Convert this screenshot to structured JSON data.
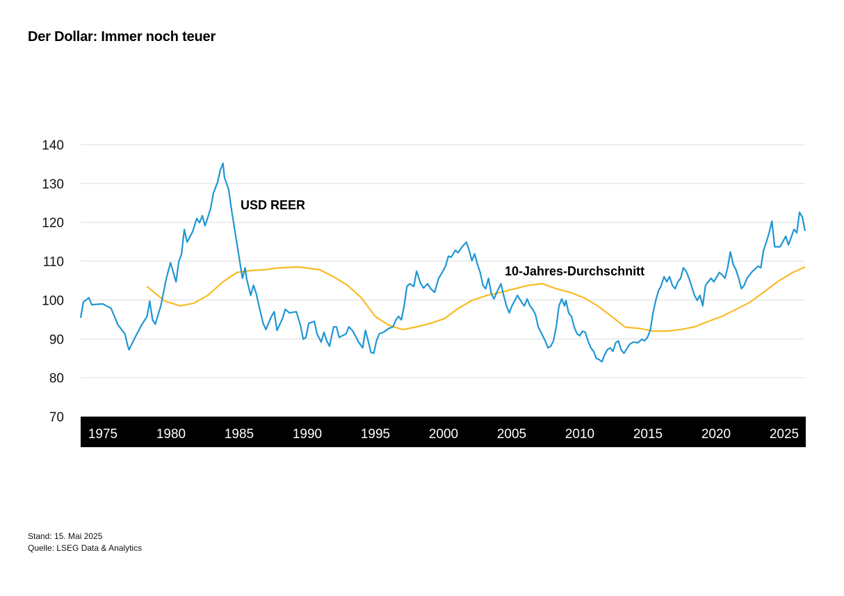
{
  "title": "Der Dollar: Immer noch teuer",
  "footer": {
    "date": "Stand: 15. Mai 2025",
    "source": "Quelle: LSEG Data & Analytics"
  },
  "chart_data": {
    "type": "line",
    "title": "Der Dollar: Immer noch teuer",
    "xlabel": "",
    "ylabel": "",
    "xlim": [
      1973,
      2025.4
    ],
    "ylim": [
      70,
      140
    ],
    "yticks": [
      70,
      80,
      90,
      100,
      110,
      120,
      130,
      140
    ],
    "xticks": [
      1975,
      1980,
      1985,
      1990,
      1995,
      2000,
      2005,
      2010,
      2015,
      2020,
      2025
    ],
    "grid": "horizontal",
    "legend": "none (inline labels)",
    "colors": {
      "reer": "#1e96d3",
      "avg": "#f8bb22",
      "axis_band": "#000000"
    },
    "series": [
      {
        "name": "USD REER",
        "x": [
          1973.0,
          1973.2,
          1973.6,
          1973.8,
          1974.6,
          1975.2,
          1975.7,
          1976.2,
          1976.4,
          1976.5,
          1977.0,
          1977.4,
          1977.8,
          1978.0,
          1978.2,
          1978.4,
          1978.8,
          1979.2,
          1979.5,
          1979.9,
          1980.1,
          1980.3,
          1980.5,
          1980.7,
          1981.1,
          1981.4,
          1981.6,
          1981.8,
          1982.0,
          1982.4,
          1982.6,
          1982.9,
          1983.1,
          1983.3,
          1983.4,
          1983.7,
          1983.9,
          1984.0,
          1984.3,
          1984.5,
          1984.7,
          1984.9,
          1985.0,
          1985.3,
          1985.5,
          1985.7,
          1985.9,
          1986.2,
          1986.4,
          1986.8,
          1987.0,
          1987.2,
          1987.6,
          1987.8,
          1988.1,
          1988.6,
          1988.9,
          1989.1,
          1989.3,
          1989.5,
          1989.9,
          1990.1,
          1990.4,
          1990.6,
          1990.8,
          1991.0,
          1991.3,
          1991.5,
          1991.7,
          1992.2,
          1992.4,
          1992.7,
          1993.1,
          1993.4,
          1993.6,
          1993.8,
          1994.0,
          1994.2,
          1994.4,
          1994.6,
          1994.9,
          1995.3,
          1995.6,
          1995.8,
          1996.0,
          1996.2,
          1996.4,
          1996.6,
          1996.8,
          1997.1,
          1997.3,
          1997.6,
          1997.8,
          1998.1,
          1998.3,
          1998.6,
          1998.9,
          1999.2,
          1999.4,
          1999.6,
          1999.8,
          2000.1,
          2000.3,
          2000.6,
          2000.9,
          2001.1,
          2001.3,
          2001.5,
          2001.7,
          2001.9,
          2002.1,
          2002.3,
          2002.5,
          2002.7,
          2002.9,
          2003.1,
          2003.4,
          2003.6,
          2003.8,
          2004.0,
          2004.2,
          2004.6,
          2004.9,
          2005.1,
          2005.3,
          2005.5,
          2005.7,
          2005.9,
          2006.1,
          2006.3,
          2006.6,
          2006.8,
          2007.0,
          2007.2,
          2007.4,
          2007.6,
          2007.8,
          2008.0,
          2008.1,
          2008.3,
          2008.5,
          2008.7,
          2008.9,
          2009.1,
          2009.3,
          2009.5,
          2009.7,
          2009.9,
          2010.1,
          2010.3,
          2010.5,
          2010.7,
          2010.9,
          2011.1,
          2011.3,
          2011.5,
          2011.7,
          2011.9,
          2012.1,
          2012.3,
          2012.5,
          2012.7,
          2013.0,
          2013.3,
          2013.6,
          2013.8,
          2014.0,
          2014.2,
          2014.4,
          2014.6,
          2014.8,
          2015.0,
          2015.2,
          2015.4,
          2015.6,
          2015.8,
          2016.0,
          2016.2,
          2016.4,
          2016.6,
          2016.8,
          2017.0,
          2017.2,
          2017.4,
          2017.6,
          2017.8,
          2018.0,
          2018.2,
          2018.4,
          2018.6,
          2018.8,
          2019.2,
          2019.4,
          2019.6,
          2019.8,
          2020.0,
          2020.2,
          2020.4,
          2020.6,
          2020.8,
          2021.0,
          2021.2,
          2021.6,
          2022.0,
          2022.2,
          2022.4,
          2022.6,
          2022.8,
          2023.0,
          2023.2,
          2023.6,
          2024.0,
          2024.2,
          2024.6,
          2024.8,
          2025.0,
          2025.2,
          2025.4
        ],
        "values": [
          95.4,
          99.5,
          100.6,
          98.8,
          99.0,
          97.9,
          93.6,
          91.3,
          88.3,
          87.2,
          90.8,
          93.5,
          95.8,
          99.7,
          94.9,
          93.8,
          98.5,
          105.6,
          109.6,
          104.7,
          109.9,
          111.9,
          118.2,
          114.9,
          117.6,
          121.0,
          119.9,
          121.7,
          119.1,
          123.5,
          127.5,
          130.3,
          133.4,
          135.2,
          131.6,
          128.5,
          123.5,
          121.4,
          114.6,
          110.1,
          105.6,
          108.3,
          105.6,
          101.2,
          103.8,
          101.7,
          98.5,
          94.0,
          92.4,
          95.8,
          97.0,
          92.2,
          95.2,
          97.6,
          96.7,
          97.0,
          93.5,
          89.9,
          90.4,
          94.0,
          94.5,
          91.3,
          89.2,
          91.7,
          89.5,
          88.1,
          93.1,
          93.1,
          90.4,
          91.3,
          93.1,
          92.0,
          89.2,
          87.7,
          92.2,
          89.5,
          86.5,
          86.3,
          89.5,
          91.3,
          91.7,
          92.7,
          93.1,
          94.9,
          95.8,
          94.9,
          98.5,
          103.5,
          104.2,
          103.5,
          107.4,
          104.2,
          103.1,
          104.2,
          103.0,
          102.0,
          105.6,
          107.4,
          108.8,
          111.3,
          111.0,
          112.8,
          112.2,
          113.7,
          114.9,
          112.8,
          110.1,
          111.9,
          109.2,
          107.1,
          103.8,
          102.9,
          105.6,
          101.7,
          100.3,
          102.0,
          104.2,
          101.2,
          98.5,
          96.7,
          98.5,
          101.2,
          99.4,
          98.5,
          100.3,
          98.5,
          97.6,
          96.3,
          93.1,
          91.7,
          89.5,
          87.7,
          88.1,
          89.5,
          93.1,
          98.5,
          100.3,
          98.5,
          99.9,
          96.7,
          95.8,
          93.1,
          91.3,
          90.8,
          92.0,
          91.7,
          89.5,
          87.7,
          86.8,
          85.0,
          84.7,
          84.1,
          85.9,
          87.2,
          87.7,
          86.8,
          89.0,
          89.5,
          87.2,
          86.3,
          87.4,
          88.6,
          89.2,
          89.0,
          89.9,
          89.5,
          90.4,
          92.2,
          96.7,
          99.9,
          102.4,
          103.8,
          106.0,
          104.7,
          106.0,
          103.8,
          102.9,
          104.7,
          105.6,
          108.3,
          107.4,
          105.6,
          103.5,
          101.2,
          99.9,
          101.2,
          98.5,
          103.8,
          104.7,
          105.6,
          104.7,
          107.1,
          106.5,
          105.6,
          108.3,
          112.4,
          109.2,
          107.8,
          105.6,
          102.9,
          103.8,
          105.6,
          107.4,
          108.7,
          108.3,
          112.8,
          114.9,
          117.3,
          120.3,
          113.7,
          113.7,
          116.4,
          114.2,
          118.2,
          117.3,
          122.6,
          121.4,
          117.8
        ]
      },
      {
        "name": "10-Jahres-Durchschnitt",
        "x": [
          1977.8,
          1979.1,
          1980.2,
          1981.2,
          1982.2,
          1983.3,
          1984.3,
          1985.3,
          1986.3,
          1987.3,
          1988.8,
          1990.3,
          1991.3,
          1992.3,
          1993.3,
          1994.3,
          1995.3,
          1996.3,
          1997.3,
          1998.3,
          1999.3,
          2000.3,
          2001.3,
          2002.4,
          2003.4,
          2004.4,
          2005.4,
          2006.4,
          2007.4,
          2008.4,
          2009.4,
          2010.4,
          2011.4,
          2012.4,
          2013.4,
          2014.4,
          2015.4,
          2016.4,
          2017.4,
          2018.4,
          2019.4,
          2020.4,
          2021.4,
          2022.4,
          2023.4,
          2024.5,
          2025.4
        ],
        "values": [
          103.5,
          99.7,
          98.5,
          99.2,
          101.2,
          104.7,
          107.1,
          107.6,
          107.8,
          108.3,
          108.5,
          107.8,
          106.0,
          103.8,
          100.6,
          95.8,
          93.5,
          92.4,
          93.1,
          94.0,
          95.2,
          97.8,
          99.9,
          101.2,
          102.0,
          102.9,
          103.8,
          104.2,
          102.9,
          102.0,
          100.6,
          98.5,
          95.8,
          93.0,
          92.7,
          92.0,
          92.0,
          92.4,
          93.1,
          94.5,
          95.8,
          97.6,
          99.4,
          102.0,
          104.7,
          107.1,
          108.5
        ]
      }
    ],
    "annotations": [
      "USD REER",
      "10-Jahres-Durchschnitt"
    ]
  }
}
